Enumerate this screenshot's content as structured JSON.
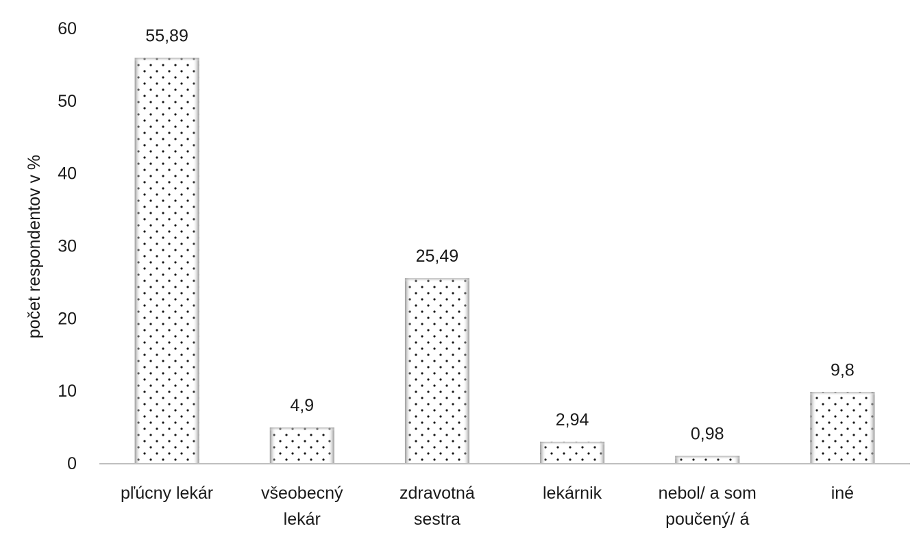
{
  "chart_data": {
    "type": "bar",
    "categories": [
      [
        "pľúcny lekár"
      ],
      [
        "všeobecný",
        "lekár"
      ],
      [
        "zdravotná",
        "sestra"
      ],
      [
        "lekárnik"
      ],
      [
        "nebol/ a som",
        "poučený/ á"
      ],
      [
        "iné"
      ]
    ],
    "values": [
      55.89,
      4.9,
      25.49,
      2.94,
      0.98,
      9.8
    ],
    "data_labels": [
      "55,89",
      "4,9",
      "25,49",
      "2,94",
      "0,98",
      "9,8"
    ],
    "title": "",
    "xlabel": "",
    "ylabel": "počet respondentov v %",
    "ylim": [
      0,
      60
    ],
    "yticks": [
      0,
      10,
      20,
      30,
      40,
      50,
      60
    ],
    "grid": false,
    "legend": "none",
    "bar_fill": "dotted-pattern",
    "colors": {
      "bar_edge": "#9a9a9a",
      "dots": "#1a1a1a",
      "axis": "#bfbfbf",
      "text": "#1a1a1a"
    }
  }
}
